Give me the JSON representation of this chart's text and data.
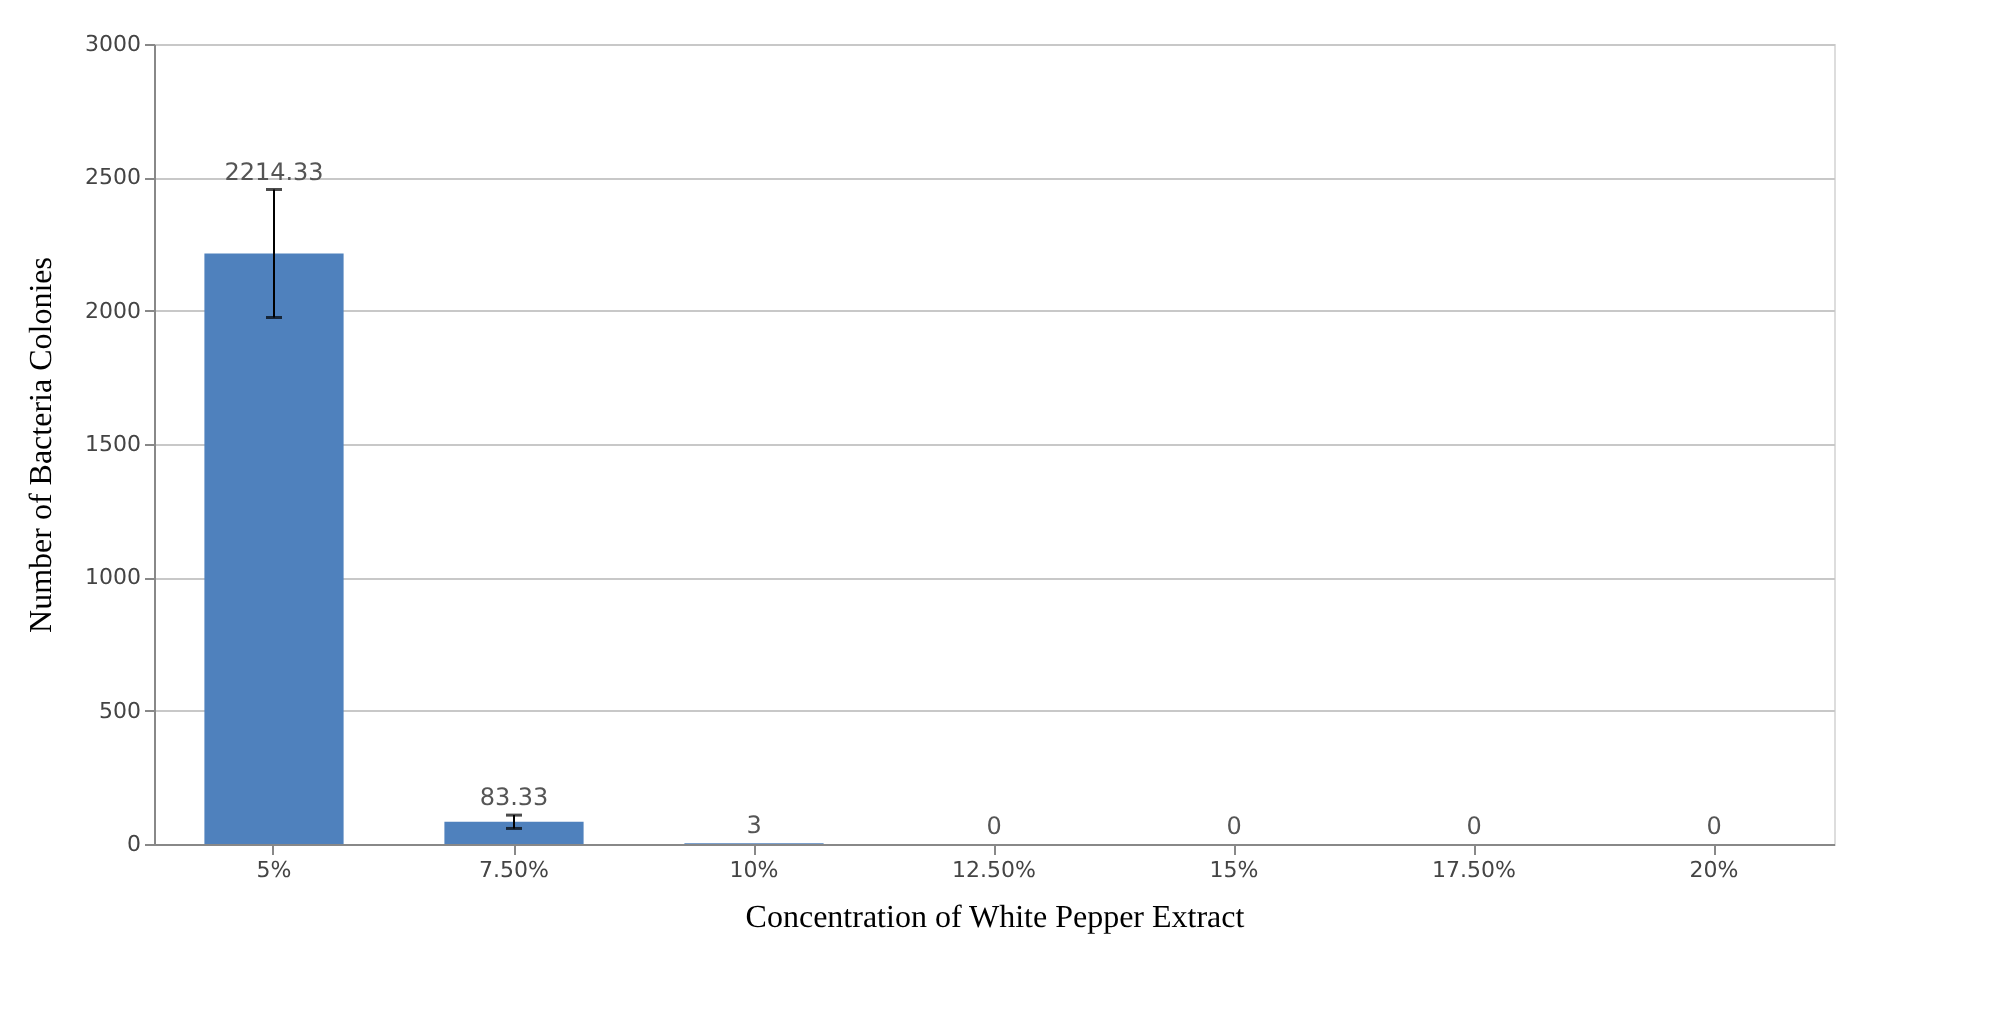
{
  "chart_data": {
    "type": "bar",
    "xlabel": "Concentration of White Pepper Extract",
    "ylabel": "Number of Bacteria Colonies",
    "categories": [
      "5%",
      "7.50%",
      "10%",
      "12.50%",
      "15%",
      "17.50%",
      "20%"
    ],
    "values": [
      2214.33,
      83.33,
      3,
      0,
      0,
      0,
      0
    ],
    "errors": [
      240,
      25,
      null,
      null,
      null,
      null,
      null
    ],
    "color": "#4f81bd",
    "ylim": [
      0,
      3000
    ],
    "yticks": [
      0,
      500,
      1000,
      1500,
      2000,
      2500,
      3000
    ],
    "grid": "y",
    "data_labels": true
  }
}
